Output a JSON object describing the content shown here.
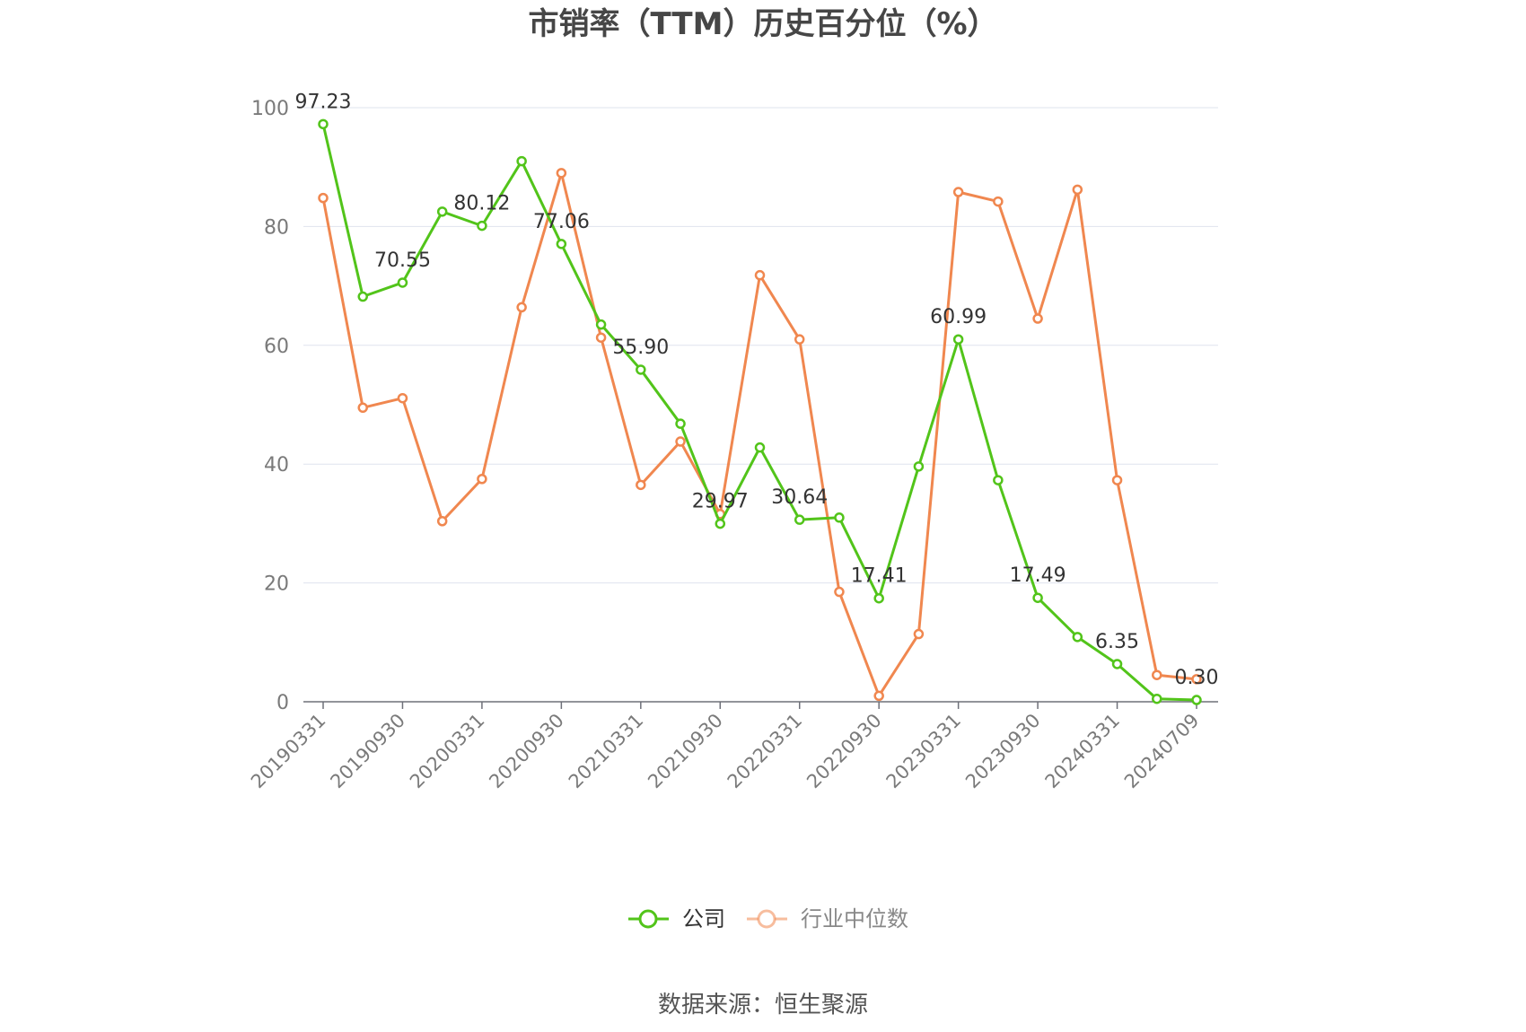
{
  "chart_data": {
    "type": "line",
    "title": "市销率（TTM）历史百分位（%）",
    "xlabel": "",
    "ylabel": "",
    "ylim": [
      0,
      100
    ],
    "yticks": [
      0,
      20,
      40,
      60,
      80,
      100
    ],
    "grid": true,
    "legend_position": "bottom",
    "x": [
      "20190331",
      "20190630",
      "20190930",
      "20191231",
      "20200331",
      "20200630",
      "20200930",
      "20201231",
      "20210331",
      "20210630",
      "20210930",
      "20211231",
      "20220331",
      "20220630",
      "20220930",
      "20221231",
      "20230331",
      "20230630",
      "20230930",
      "20231231",
      "20240331",
      "20240630",
      "20240709"
    ],
    "x_tick_labels": [
      "20190331",
      "20190930",
      "20200331",
      "20200930",
      "20210331",
      "20210930",
      "20220331",
      "20220930",
      "20230331",
      "20230930",
      "20240331",
      "20240709"
    ],
    "series": [
      {
        "name": "公司",
        "color": "#52c41a",
        "values": [
          97.23,
          68.2,
          70.55,
          82.5,
          80.12,
          91.0,
          77.06,
          63.5,
          55.9,
          46.8,
          29.97,
          42.8,
          30.64,
          31.0,
          17.41,
          39.6,
          60.99,
          37.3,
          17.49,
          10.9,
          6.35,
          0.5,
          0.3
        ],
        "labels": {
          "0": "97.23",
          "2": "70.55",
          "4": "80.12",
          "6": "77.06",
          "8": "55.90",
          "10": "29.97",
          "12": "30.64",
          "14": "17.41",
          "16": "60.99",
          "18": "17.49",
          "20": "6.35",
          "22": "0.30"
        }
      },
      {
        "name": "行业中位数",
        "color": "#f0874f",
        "values": [
          84.8,
          49.5,
          51.1,
          30.4,
          37.5,
          66.4,
          89.0,
          61.3,
          36.5,
          43.8,
          31.6,
          71.8,
          61.0,
          18.5,
          1.0,
          11.4,
          85.8,
          84.2,
          64.5,
          86.2,
          37.3,
          4.5,
          3.8
        ]
      }
    ]
  },
  "legend": {
    "items": [
      {
        "label": "公司",
        "color": "#52c41a",
        "text_color": "#333333"
      },
      {
        "label": "行业中位数",
        "color": "#f0874f",
        "text_color": "#888888"
      }
    ]
  },
  "footer": {
    "source": "数据来源：恒生聚源"
  }
}
